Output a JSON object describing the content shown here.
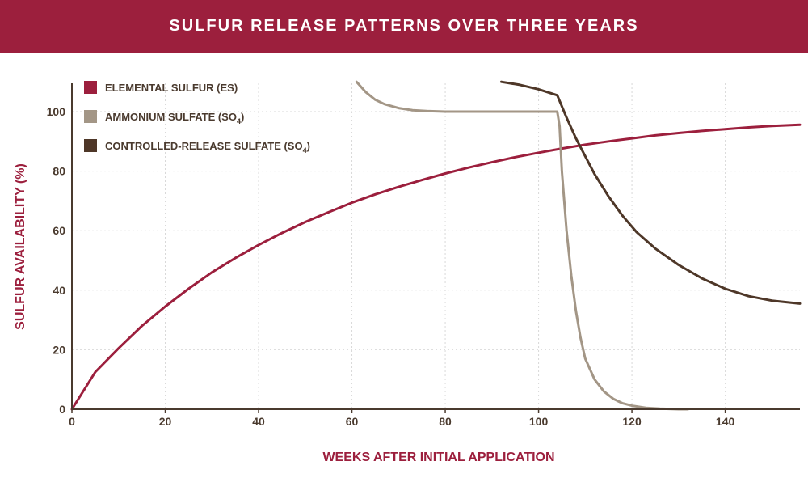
{
  "header": {
    "title": "SULFUR RELEASE PATTERNS OVER THREE YEARS"
  },
  "chart_data": {
    "type": "line",
    "xlabel": "WEEKS AFTER INITIAL APPLICATION",
    "ylabel": "SULFUR AVAILABILITY (%)",
    "xlim": [
      0,
      156
    ],
    "ylim": [
      0,
      110
    ],
    "xticks": [
      "0",
      "20",
      "40",
      "60",
      "80",
      "100",
      "120",
      "140"
    ],
    "yticks": [
      "0",
      "20",
      "40",
      "60",
      "80",
      "100"
    ],
    "grid": true,
    "legend_position": "top-left",
    "series": [
      {
        "name": "ELEMENTAL SULFUR (ES)",
        "name_sub": "",
        "color": "#9c1f3d",
        "x": [
          0,
          5,
          10,
          15,
          20,
          25,
          30,
          35,
          40,
          45,
          50,
          55,
          60,
          65,
          70,
          75,
          80,
          85,
          90,
          95,
          100,
          105,
          110,
          115,
          120,
          125,
          130,
          135,
          140,
          145,
          150,
          156
        ],
        "y": [
          0,
          12.5,
          20.5,
          28,
          34.5,
          40.5,
          46,
          50.8,
          55.2,
          59.2,
          62.9,
          66.2,
          69.4,
          72.2,
          74.7,
          77,
          79.2,
          81.2,
          83,
          84.7,
          86.2,
          87.6,
          88.9,
          90,
          91,
          92,
          92.8,
          93.5,
          94.1,
          94.7,
          95.2,
          95.6
        ]
      },
      {
        "name": "AMMONIUM SULFATE (SO",
        "name_sub": "4",
        "name_suffix": ")",
        "color": "#a39686",
        "x": [
          61,
          63,
          65,
          67,
          70,
          73,
          76,
          80,
          90,
          100,
          104,
          104.5,
          105,
          106,
          107,
          108,
          109,
          110,
          112,
          114,
          116,
          118,
          120,
          123,
          126,
          130,
          132
        ],
        "y": [
          110,
          106.5,
          104,
          102.5,
          101.2,
          100.5,
          100.2,
          100,
          100,
          100,
          100,
          95,
          80,
          60,
          45,
          33,
          24,
          17,
          10,
          6,
          3.5,
          2,
          1.2,
          0.5,
          0.2,
          0,
          0
        ]
      },
      {
        "name": "CONTROLLED-RELEASE SULFATE (SO",
        "name_sub": "4",
        "name_suffix": ")",
        "color": "#4e3728",
        "x": [
          92,
          96,
          100,
          104,
          106,
          108,
          110,
          112,
          115,
          118,
          121,
          125,
          130,
          135,
          140,
          145,
          150,
          156
        ],
        "y": [
          110,
          109,
          107.5,
          105.5,
          98,
          91,
          85,
          79,
          71.5,
          65,
          59.5,
          54,
          48.5,
          44,
          40.5,
          38,
          36.5,
          35.5
        ]
      }
    ]
  }
}
